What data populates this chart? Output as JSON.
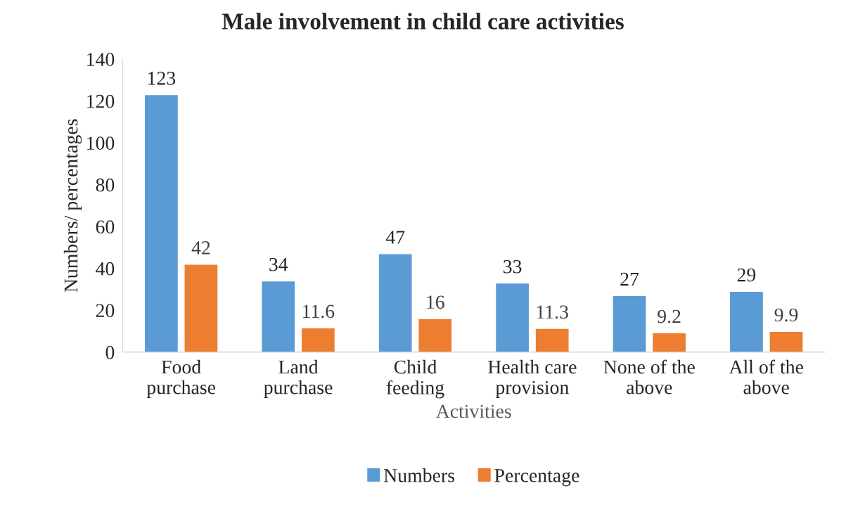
{
  "chart_data": {
    "type": "bar",
    "title": "Male involvement in child care activities",
    "xlabel": "Activities",
    "ylabel": "Numbers/ percentages",
    "categories": [
      "Food\npurchase",
      "Land\npurchase",
      "Child\nfeeding",
      "Health care\nprovision",
      "None of the\nabove",
      "All of the\nabove"
    ],
    "series": [
      {
        "name": "Numbers",
        "color": "#5b9bd5",
        "values": [
          123,
          34,
          47,
          33,
          27,
          29
        ]
      },
      {
        "name": "Percentage",
        "color": "#ed7d31",
        "values": [
          42,
          11.6,
          16,
          11.3,
          9.2,
          9.9
        ]
      }
    ],
    "ylim": [
      0,
      140
    ],
    "yticks": [
      0,
      20,
      40,
      60,
      80,
      100,
      120,
      140
    ],
    "grid": false,
    "legend": "bottom",
    "data_labels": true
  }
}
